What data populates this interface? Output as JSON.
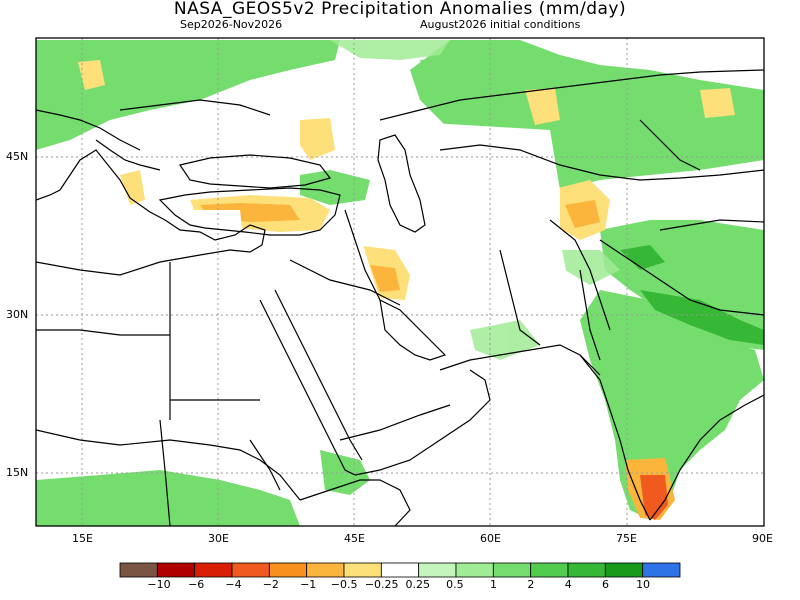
{
  "header": {
    "title": "NASA_GEOS5v2 Precipitation Anomalies (mm/day)",
    "period": "Sep2026-Nov2026",
    "init": "August2026 initial conditions"
  },
  "map": {
    "lat_labels": [
      {
        "text": "45N",
        "lat": 45
      },
      {
        "text": "30N",
        "lat": 30
      },
      {
        "text": "15N",
        "lat": 15
      }
    ],
    "lon_labels": [
      {
        "text": "15E",
        "lon": 15
      },
      {
        "text": "30E",
        "lon": 30
      },
      {
        "text": "45E",
        "lon": 45
      },
      {
        "text": "60E",
        "lon": 60
      },
      {
        "text": "75E",
        "lon": 75
      },
      {
        "text": "90E",
        "lon": 90
      }
    ]
  },
  "colorbar": {
    "colors": [
      "#7a5544",
      "#b00000",
      "#d81e05",
      "#f05a1e",
      "#f8901e",
      "#fbb43c",
      "#fde07a",
      "#ffffff",
      "#c4f5bd",
      "#a0eb95",
      "#74dd6e",
      "#52cc4e",
      "#36b836",
      "#1a9a1a",
      "#2f74e6"
    ],
    "labels": [
      "−10",
      "−6",
      "−4",
      "−2",
      "−1",
      "−0.5",
      "−0.25",
      "0.25",
      "0.5",
      "1",
      "2",
      "4",
      "6",
      "10"
    ]
  }
}
